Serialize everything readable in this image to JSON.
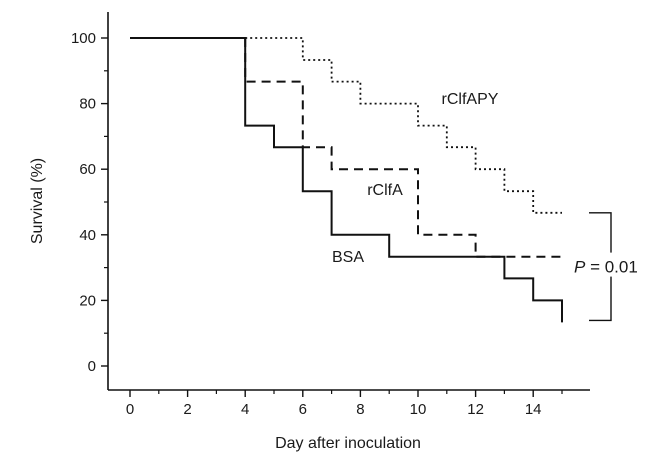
{
  "chart_data": {
    "type": "line",
    "step": true,
    "xlabel": "Day after inoculation",
    "ylabel": "Survival (%)",
    "xlim": [
      0,
      15
    ],
    "ylim": [
      0,
      100
    ],
    "xticks": [
      0,
      2,
      4,
      6,
      8,
      10,
      12,
      14
    ],
    "yticks": [
      0,
      20,
      40,
      60,
      80,
      100
    ],
    "grid": false,
    "series": [
      {
        "name": "BSA",
        "line_style": "solid",
        "points": [
          [
            0,
            100
          ],
          [
            4,
            100
          ],
          [
            4,
            73.3
          ],
          [
            5,
            73.3
          ],
          [
            5,
            66.7
          ],
          [
            6,
            66.7
          ],
          [
            6,
            53.3
          ],
          [
            7,
            53.3
          ],
          [
            7,
            40
          ],
          [
            9,
            40
          ],
          [
            9,
            33.3
          ],
          [
            13,
            33.3
          ],
          [
            13,
            26.7
          ],
          [
            14,
            26.7
          ],
          [
            14,
            20
          ],
          [
            15,
            20
          ],
          [
            15,
            13.3
          ]
        ]
      },
      {
        "name": "rClfA",
        "line_style": "dashed",
        "points": [
          [
            4,
            100
          ],
          [
            4,
            86.7
          ],
          [
            6,
            86.7
          ],
          [
            6,
            66.7
          ],
          [
            7,
            66.7
          ],
          [
            7,
            60
          ],
          [
            10,
            60
          ],
          [
            10,
            40
          ],
          [
            12,
            40
          ],
          [
            12,
            33.3
          ],
          [
            15,
            33.3
          ]
        ]
      },
      {
        "name": "rClfAPY",
        "line_style": "dotted",
        "points": [
          [
            4,
            100
          ],
          [
            6,
            100
          ],
          [
            6,
            93.3
          ],
          [
            7,
            93.3
          ],
          [
            7,
            86.7
          ],
          [
            8,
            86.7
          ],
          [
            8,
            80
          ],
          [
            10,
            80
          ],
          [
            10,
            73.3
          ],
          [
            11,
            73.3
          ],
          [
            11,
            66.7
          ],
          [
            12,
            66.7
          ],
          [
            12,
            60
          ],
          [
            13,
            60
          ],
          [
            13,
            53.3
          ],
          [
            14,
            53.3
          ],
          [
            14,
            46.7
          ],
          [
            15,
            46.7
          ]
        ]
      }
    ],
    "annotation": {
      "p_italic": "P",
      "p_rest": " = 0.01",
      "bracket_from": 46.7,
      "bracket_to": 13.3
    }
  }
}
